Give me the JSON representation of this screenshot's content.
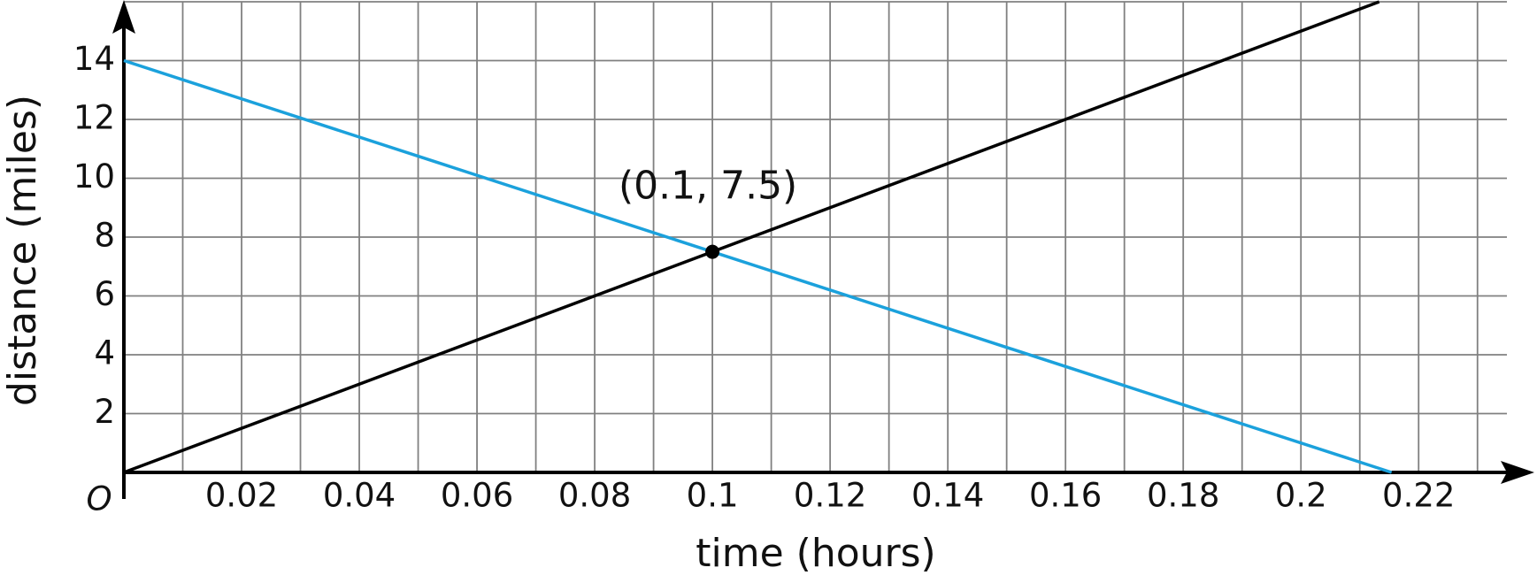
{
  "chart_data": {
    "type": "line",
    "x_label": "time (hours)",
    "y_label": "distance (miles)",
    "origin_label": "O",
    "xlim": [
      0,
      0.235
    ],
    "ylim": [
      0,
      16
    ],
    "xticks": [
      0.02,
      0.04,
      0.06,
      0.08,
      0.1,
      0.12,
      0.14,
      0.16,
      0.18,
      0.2,
      0.22
    ],
    "yticks": [
      2,
      4,
      6,
      8,
      10,
      12,
      14
    ],
    "xgrid": [
      0.01,
      0.02,
      0.03,
      0.04,
      0.05,
      0.06,
      0.07,
      0.08,
      0.09,
      0.1,
      0.11,
      0.12,
      0.13,
      0.14,
      0.15,
      0.16,
      0.17,
      0.18,
      0.19,
      0.2,
      0.21,
      0.22,
      0.23
    ],
    "grid": true,
    "series": [
      {
        "color": "#000000",
        "x": [
          0,
          0.2133
        ],
        "values": [
          0,
          16
        ]
      },
      {
        "color": "#1ba1dc",
        "x": [
          0,
          0.2154
        ],
        "values": [
          14,
          0
        ]
      }
    ],
    "annotations": [
      {
        "x": 0.1,
        "y": 7.5,
        "label": "(0.1, 7.5)"
      }
    ]
  }
}
